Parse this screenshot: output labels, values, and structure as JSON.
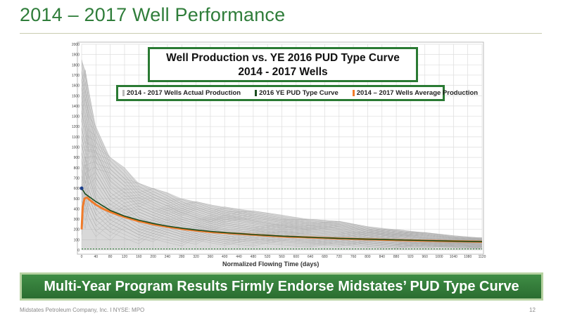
{
  "slide": {
    "title": "2014 – 2017 Well Performance",
    "banner": "Multi-Year Program Results Firmly Endorse Midstates’ PUD Type Curve",
    "footer_left": "Midstates Petroleum Company, Inc. I NYSE: MPO",
    "page_number": "12"
  },
  "colors": {
    "accent_green": "#2f7d3a",
    "actual_production": "#b8b8b8",
    "type_curve": "#1a4d1f",
    "average_production": "#f07b2a"
  },
  "chart_data": {
    "type": "line",
    "title": "Well Production vs. YE 2016 PUD Type Curve",
    "subtitle": "2014 - 2017 Wells",
    "xlabel": "Normalized Flowing Time (days)",
    "ylabel": "",
    "xlim": [
      0,
      1120
    ],
    "ylim": [
      0,
      2000
    ],
    "grid": true,
    "legend_position": "top",
    "x_ticks": [
      "0",
      "40",
      "80",
      "120",
      "160",
      "200",
      "240",
      "280",
      "320",
      "360",
      "400",
      "440",
      "480",
      "520",
      "560",
      "600",
      "640",
      "680",
      "720",
      "760",
      "800",
      "840",
      "880",
      "920",
      "960",
      "1000",
      "1040",
      "1080",
      "1120"
    ],
    "y_ticks": [
      "0",
      "100",
      "200",
      "300",
      "400",
      "500",
      "600",
      "700",
      "800",
      "900",
      "1000",
      "1100",
      "1200",
      "1300",
      "1400",
      "1500",
      "1600",
      "1700",
      "1800",
      "1900",
      "2000"
    ],
    "legend": [
      {
        "name": "2014 - 2017 Wells Actual Production",
        "color": "#b8b8b8"
      },
      {
        "name": "2016 YE PUD Type Curve",
        "color": "#1a4d1f"
      },
      {
        "name": "2014 – 2017 Wells Average Production",
        "color": "#f07b2a"
      }
    ],
    "series": [
      {
        "name": "2016 YE PUD Type Curve",
        "color": "#1a4d1f",
        "x": [
          0,
          10,
          20,
          40,
          80,
          120,
          160,
          200,
          240,
          280,
          320,
          360,
          400,
          480,
          560,
          640,
          720,
          800,
          880,
          960,
          1040,
          1120
        ],
        "y": [
          600,
          545,
          520,
          470,
          385,
          330,
          290,
          258,
          232,
          212,
          195,
          181,
          169,
          150,
          135,
          123,
          113,
          105,
          98,
          92,
          86,
          81
        ]
      },
      {
        "name": "2014 – 2017 Wells Average Production",
        "color": "#f07b2a",
        "x": [
          0,
          3,
          8,
          15,
          25,
          40,
          60,
          80,
          120,
          160,
          200,
          240,
          280,
          320,
          360,
          400,
          480,
          560,
          640,
          720,
          800,
          880,
          960,
          1040,
          1120
        ],
        "y": [
          200,
          420,
          500,
          510,
          480,
          440,
          400,
          370,
          320,
          280,
          250,
          225,
          205,
          190,
          175,
          165,
          148,
          132,
          122,
          112,
          104,
          96,
          90,
          85,
          80
        ]
      }
    ],
    "type_curve_start_marker": {
      "x": 0,
      "y": 600
    },
    "reference_level": {
      "y": 10,
      "style": "dashed"
    },
    "actual_production_envelope": {
      "x": [
        0,
        10,
        20,
        40,
        80,
        120,
        160,
        200,
        240,
        280,
        320,
        360,
        400,
        480,
        560,
        640,
        720,
        800,
        880,
        960,
        1040,
        1120
      ],
      "upper": [
        1850,
        1750,
        1550,
        1200,
        900,
        800,
        650,
        600,
        560,
        500,
        470,
        440,
        420,
        380,
        340,
        300,
        280,
        230,
        200,
        170,
        140,
        120
      ],
      "lower": [
        0,
        0,
        0,
        0,
        0,
        0,
        0,
        0,
        0,
        0,
        0,
        0,
        0,
        0,
        0,
        0,
        0,
        0,
        0,
        0,
        0,
        0
      ]
    }
  }
}
